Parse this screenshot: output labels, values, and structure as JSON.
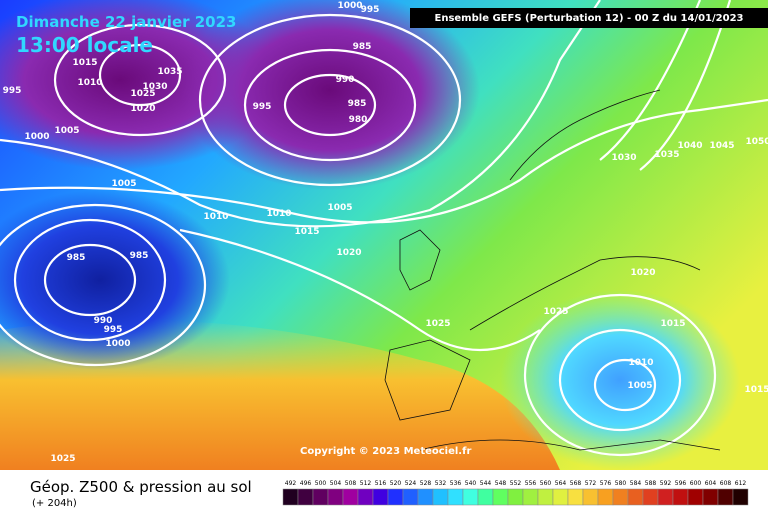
{
  "header": {
    "date": "Dimanche 22 janvier 2023",
    "time": "13:00 locale",
    "model": "Ensemble GEFS  (Perturbation 12)  -  00 Z du 14/01/2023"
  },
  "isobar_labels": [
    "1000",
    "995",
    "985",
    "1015",
    "1010",
    "1035",
    "1030",
    "1025",
    "1020",
    "995",
    "990",
    "985",
    "980",
    "995",
    "1000",
    "1005",
    "1005",
    "1030",
    "1035",
    "1040",
    "1045",
    "1050",
    "1010",
    "1010",
    "1005",
    "1015",
    "1020",
    "985",
    "985",
    "1020",
    "990",
    "995",
    "1000",
    "1025",
    "1025",
    "1015",
    "1010",
    "1005",
    "1015",
    "1025"
  ],
  "copyright": "Copyright © 2023 Meteociel.fr",
  "footer": {
    "title": "Géop. Z500 & pression au sol",
    "lead": "(+ 204h)"
  },
  "legend": {
    "labels": [
      "492",
      "496",
      "500",
      "504",
      "508",
      "512",
      "516",
      "520",
      "524",
      "528",
      "532",
      "536",
      "540",
      "544",
      "548",
      "552",
      "556",
      "560",
      "564",
      "568",
      "572",
      "576",
      "580",
      "584",
      "588",
      "592",
      "596",
      "600",
      "604",
      "608",
      "612"
    ]
  }
}
